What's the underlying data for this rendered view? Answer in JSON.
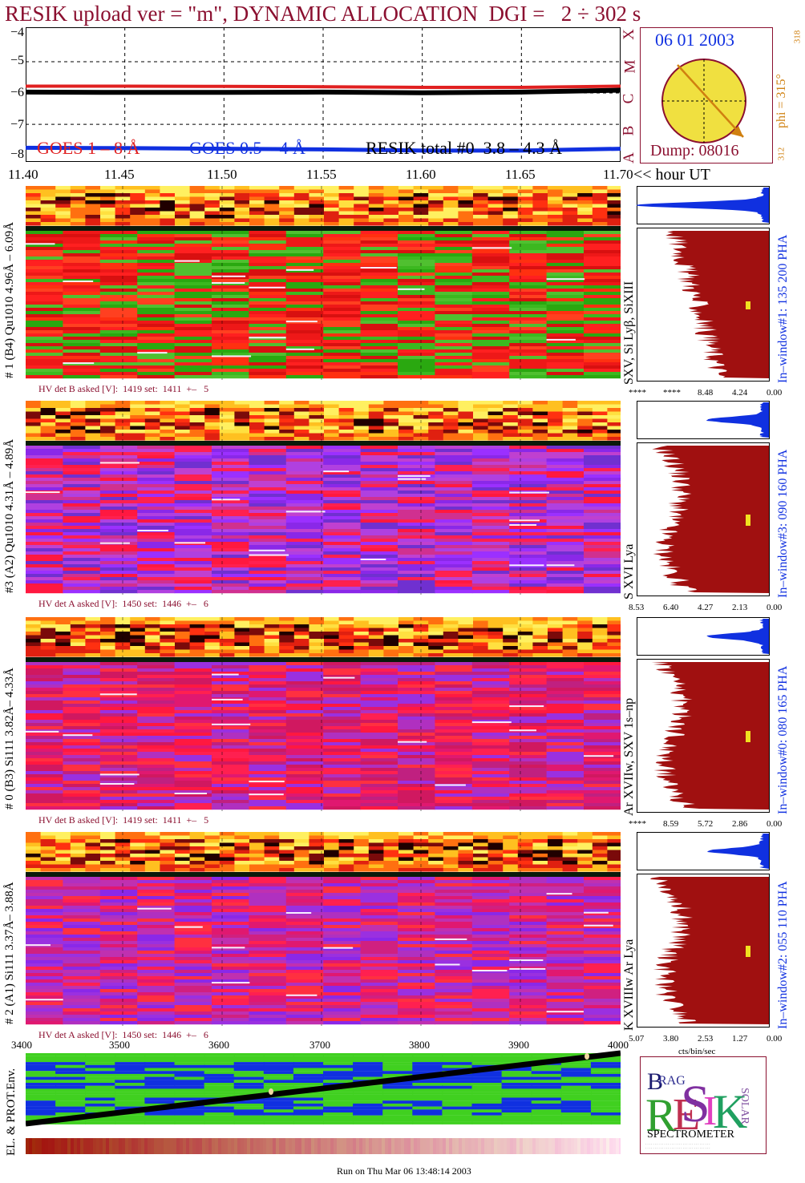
{
  "title": "RESIK upload ver = \"m\", DYNAMIC ALLOCATION  DGI =   2 ÷ 302 s",
  "top_panel": {
    "y_ticks": [
      "−4",
      "−5",
      "−6",
      "−7",
      "−8"
    ],
    "goes_classes": [
      "X",
      "M",
      "C",
      "B",
      "A"
    ],
    "legend": [
      {
        "label": "GOES 1 – 8 Å",
        "color": "#e02020"
      },
      {
        "label": "GOES 0.5 – 4 Å",
        "color": "#1030e0"
      },
      {
        "label": "RESIK total #0  3.8 – 4.3 Å",
        "color": "#000000"
      }
    ],
    "x_ticks": [
      "11.40",
      "11.45",
      "11.50",
      "11.55",
      "11.60",
      "11.65",
      "11.70"
    ],
    "x_unit": "<< hour UT"
  },
  "sun_panel": {
    "date": "06 01 2003",
    "dump": "Dump: 08016",
    "phi": "phi = 315°",
    "phi_top": "318",
    "phi_bottom": "312",
    "disk_color": "#f0e040",
    "arrow_color": "#d08010"
  },
  "detectors": [
    {
      "ylabel": "# 1 (B4) Qu1010 4.96Å – 6.09Å",
      "line_label": "SXV, Si Lyβ, SiXIII",
      "window": "In–window#1:  135 200 PHA",
      "hv": "HV det B asked [V]:  1419 set:  1411  +–   5",
      "hist_ticks": [
        "****",
        "****",
        "8.48",
        "4.24",
        "0.00"
      ],
      "palette": "green"
    },
    {
      "ylabel": "#3 (A2) Qu1010  4.31Å – 4.89Å",
      "line_label": "S XVI Lya",
      "window": "In–window#3:  090 160 PHA",
      "hv": "HV det A asked [V]:  1450 set:  1446  +–   6",
      "hist_ticks": [
        "8.53",
        "6.40",
        "4.27",
        "2.13",
        "0.00"
      ],
      "palette": "purple"
    },
    {
      "ylabel": "# 0 (B3) Si111  3.82Å– 4.33Å",
      "line_label": "Ar XVIIw,  SXV 1s–np",
      "window": "In–window#0:  080 165 PHA",
      "hv": "HV det B asked [V]:  1419 set:  1411  +–   5",
      "hist_ticks": [
        "****",
        "8.59",
        "5.72",
        "2.86",
        "0.00"
      ],
      "palette": "magenta"
    },
    {
      "ylabel": "# 2 (A1) Si111  3.37Å–  3.88Å",
      "line_label": "K XVIIIw  Ar Lya",
      "window": "In–window#2:  055 110 PHA",
      "hv": "HV det A asked [V]:  1450 set:  1446  +–   6",
      "hist_ticks": [
        "5.07",
        "3.80",
        "2.53",
        "1.27",
        "0.00"
      ],
      "palette": "magenta2"
    }
  ],
  "hist_unit": "cts/bin/sec",
  "env_panel": {
    "ylabel": "EL. & PROT.Env.",
    "x_ticks": [
      "3400",
      "3500",
      "3600",
      "3700",
      "3800",
      "3900",
      "4000"
    ]
  },
  "logo": {
    "letters": [
      "B",
      "R",
      "A",
      "G",
      "R",
      "E",
      "S",
      "I",
      "K",
      "S",
      "O",
      "L",
      "A",
      "R"
    ],
    "caption": "SPECTROMETER"
  },
  "footer": "Run on Thu Mar 06 13:48:14 2003",
  "chart_data": {
    "type": "line",
    "title": "RESIK upload ver = \"m\", DYNAMIC ALLOCATION  DGI =   2 ÷ 302 s",
    "xlabel": "<< hour UT",
    "x_range": [
      11.4,
      11.7
    ],
    "ylim": [
      -8.2,
      -3.9
    ],
    "series": [
      {
        "name": "GOES 1 – 8 Å",
        "x": [
          11.4,
          11.45,
          11.5,
          11.55,
          11.6,
          11.65,
          11.7
        ],
        "values": [
          -5.78,
          -5.78,
          -5.79,
          -5.8,
          -5.82,
          -5.82,
          -5.78
        ]
      },
      {
        "name": "GOES 0.5 – 4 Å",
        "x": [
          11.4,
          11.45,
          11.5,
          11.55,
          11.6,
          11.65,
          11.7
        ],
        "values": [
          -7.75,
          -7.76,
          -7.78,
          -7.8,
          -7.84,
          -7.84,
          -7.78
        ]
      },
      {
        "name": "RESIK total #0  3.8 – 4.3 Å",
        "x": [
          11.4,
          11.45,
          11.5,
          11.55,
          11.6,
          11.65,
          11.7
        ],
        "values": [
          -5.97,
          -5.98,
          -5.98,
          -5.97,
          -5.99,
          -5.97,
          -5.91
        ]
      }
    ]
  }
}
